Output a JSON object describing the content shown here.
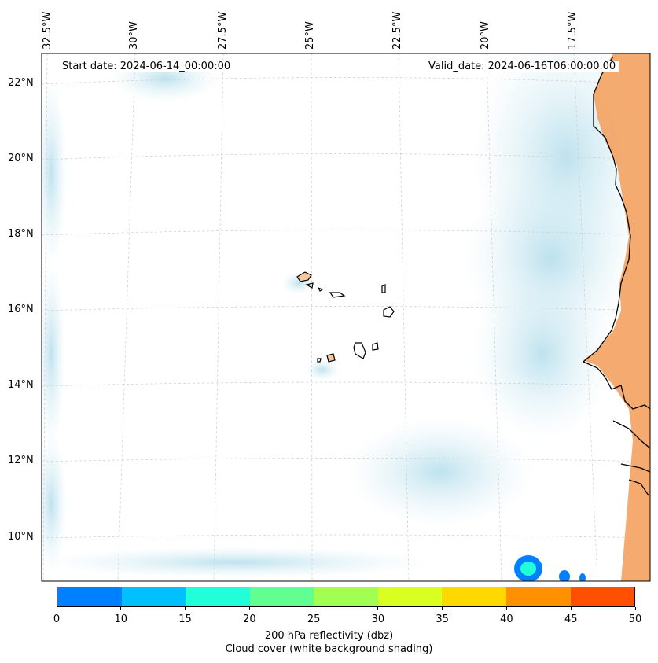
{
  "map": {
    "start_date_text": "Start date: 2024-06-14_00:00:00",
    "valid_date_text": "Valid_date: 2024-06-16T06:00:00.00",
    "longitude_labels": [
      "32.5°W",
      "30°W",
      "27.5°W",
      "25°W",
      "22.5°W",
      "20°W",
      "17.5°W"
    ],
    "latitude_labels": [
      "22°N",
      "20°N",
      "18°N",
      "16°N",
      "14°N",
      "12°N",
      "10°N"
    ],
    "colors": {
      "land_orange": "#f4a261",
      "cloud_blue": "#bfe3ee",
      "island_fill": "#f6c8a0",
      "coastline": "#000000",
      "grid": "#cccccc"
    }
  },
  "colorbar": {
    "ticks": [
      "0",
      "10",
      "15",
      "20",
      "25",
      "30",
      "35",
      "40",
      "45",
      "50"
    ],
    "colors": [
      "#0080ff",
      "#00c0ff",
      "#20ffd8",
      "#60ff90",
      "#a0ff50",
      "#d8ff20",
      "#ffd800",
      "#ff9000",
      "#ff5000"
    ],
    "title_line1": "200 hPa reflectivity (dbz)",
    "title_line2": "Cloud cover (white background shading)"
  }
}
